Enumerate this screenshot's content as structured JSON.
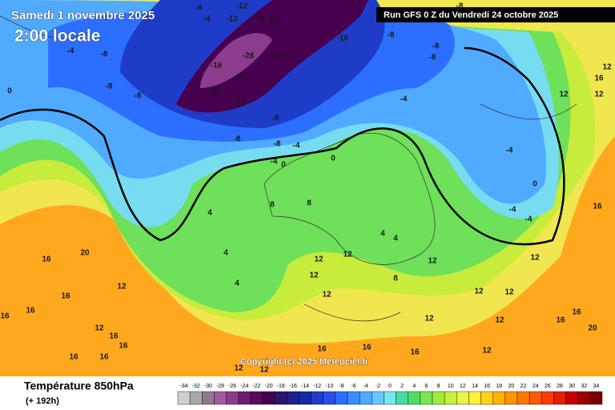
{
  "header": {
    "date": "Samedi 1 novembre 2025",
    "time": "2:00 locale",
    "run": "Run GFS 0 Z du Vendredi 24 octobre 2025",
    "copyright": "Copyright (c) 2025 Meteociel.fr"
  },
  "footer": {
    "title": "Température 850hPa",
    "lead": "(+ 192h)"
  },
  "legend": {
    "values": [
      -34,
      -32,
      -30,
      -28,
      -26,
      -24,
      -22,
      -20,
      -18,
      -16,
      -14,
      -12,
      -10,
      -8,
      -6,
      -4,
      -2,
      0,
      2,
      4,
      6,
      8,
      10,
      12,
      14,
      16,
      18,
      20,
      22,
      24,
      26,
      28,
      30,
      32,
      34
    ],
    "colors": [
      "#cfcfcf",
      "#a8a8a8",
      "#8e7a8e",
      "#a05aa0",
      "#8c3c8c",
      "#6e1e6e",
      "#5a0a5a",
      "#46004e",
      "#2a1470",
      "#1e1e8c",
      "#1428a8",
      "#1e3cc8",
      "#2850e6",
      "#2c6eff",
      "#3c8cff",
      "#50aaff",
      "#64c8ff",
      "#78e6f0",
      "#46dca0",
      "#50dc64",
      "#78e650",
      "#a0ec3c",
      "#c8f03c",
      "#ecf050",
      "#fff03c",
      "#ffd21e",
      "#ffb400",
      "#ff9600",
      "#ff7800",
      "#ff5a00",
      "#ff3c00",
      "#e61e00",
      "#c80000",
      "#a00000",
      "#780000"
    ]
  },
  "contour_labels": [
    -12,
    -8,
    -12,
    -8,
    -12,
    -4,
    -8,
    -4,
    -8,
    -8,
    -8,
    -16,
    -28,
    -28,
    -28,
    -12,
    -12,
    -16,
    -8,
    -8,
    -8,
    -8,
    -4,
    -8,
    -8,
    -8,
    -4,
    -4,
    0,
    0,
    -4,
    0,
    -4,
    -4,
    0,
    4,
    4,
    4,
    8,
    8,
    12,
    12,
    12,
    12,
    4,
    4,
    8,
    12,
    12,
    12,
    12,
    12,
    12,
    12,
    16,
    16,
    16,
    20,
    16,
    20,
    16,
    16,
    16,
    12,
    12,
    16,
    16,
    16,
    16,
    16,
    16,
    16,
    12,
    12,
    16,
    12,
    12,
    12
  ]
}
